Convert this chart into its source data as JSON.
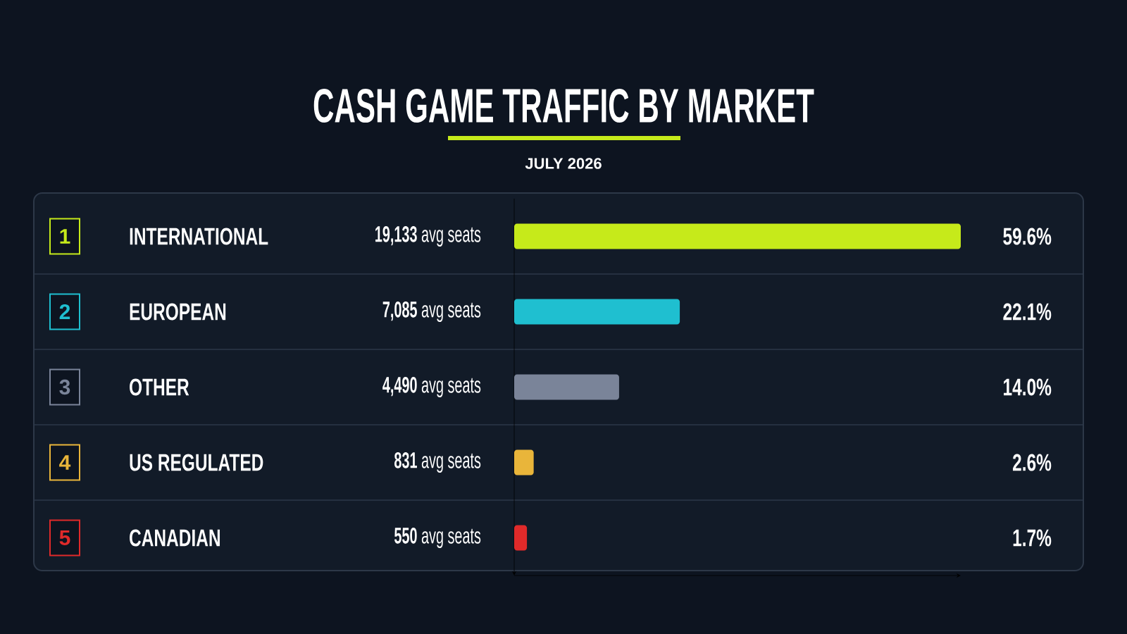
{
  "chart_data": {
    "type": "bar",
    "orientation": "horizontal",
    "title": "CASH GAME TRAFFIC BY MARKET",
    "subtitle": "JULY 2026",
    "categories": [
      "INTERNATIONAL",
      "EUROPEAN",
      "OTHER",
      "US REGULATED",
      "CANADIAN"
    ],
    "values": [
      59.6,
      22.1,
      14.0,
      2.6,
      1.7
    ],
    "value_labels": [
      "59.6%",
      "22.1%",
      "14.0%",
      "2.6%",
      "1.7%"
    ],
    "colors": [
      "#c6ea1a",
      "#1fbfd0",
      "#7a8499",
      "#e9b53a",
      "#e02a2a"
    ],
    "annotations": [
      "1",
      "2",
      "3",
      "4",
      "5",
      "**19,133** avg seats",
      "**7,085** avg seats",
      "**4,490** avg seats",
      "**831** avg seats",
      "**550** avg seats"
    ]
  }
}
